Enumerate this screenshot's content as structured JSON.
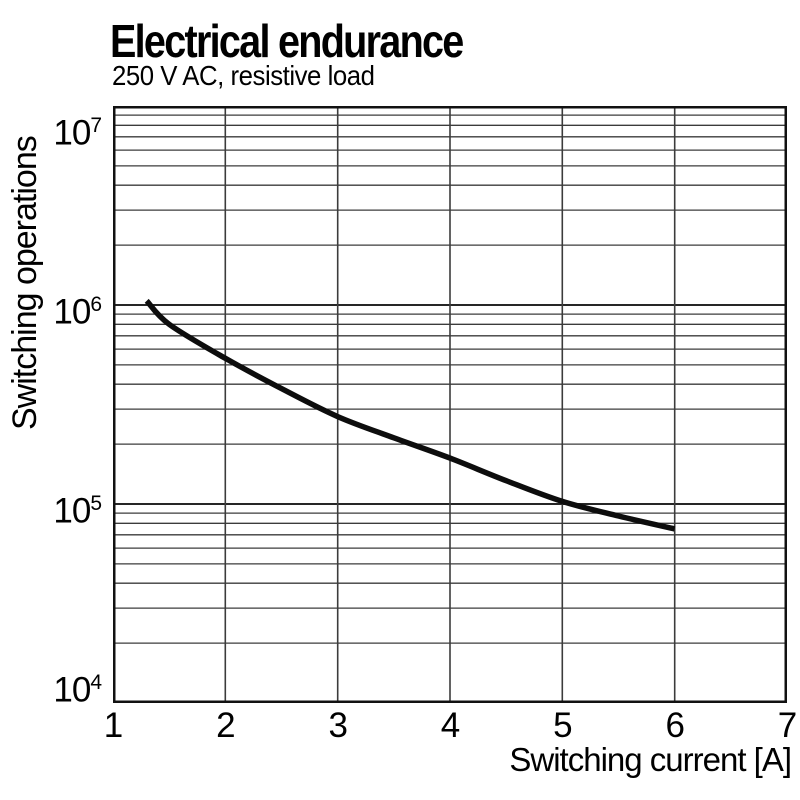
{
  "header": {
    "title": "Electrical endurance",
    "subtitle": "250 V AC, resistive load"
  },
  "chart_data": {
    "type": "line",
    "title": "Electrical endurance",
    "subtitle": "250 V AC, resistive load",
    "xlabel": "Switching current [A]",
    "ylabel": "Switching operations",
    "x_range": [
      1,
      7
    ],
    "x_ticks": [
      1,
      2,
      3,
      4,
      5,
      6,
      7
    ],
    "y_scale": "log",
    "y_range": [
      10000,
      10000000
    ],
    "y_ticks": [
      {
        "value": 10000000,
        "base": "10",
        "exp": "7"
      },
      {
        "value": 1000000,
        "base": "10",
        "exp": "6"
      },
      {
        "value": 100000,
        "base": "10",
        "exp": "5"
      },
      {
        "value": 10000,
        "base": "10",
        "exp": "4"
      }
    ],
    "grid": {
      "y_minor": true,
      "y_major": true,
      "x_major": true,
      "x_minor": false
    },
    "legend": "none",
    "series": [
      {
        "name": "electrical-endurance-curve",
        "color": "#0d0d0d",
        "points": [
          [
            1.3,
            1050000
          ],
          [
            1.5,
            800000
          ],
          [
            2.0,
            540000
          ],
          [
            2.5,
            380000
          ],
          [
            3.0,
            275000
          ],
          [
            3.5,
            215000
          ],
          [
            4.0,
            170000
          ],
          [
            4.5,
            131000
          ],
          [
            5.0,
            103000
          ],
          [
            5.5,
            87000
          ],
          [
            6.0,
            75000
          ]
        ]
      }
    ],
    "colors": {
      "background": "#ffffff",
      "grid_minor": "#3c3c3c",
      "grid_major": "#262626",
      "axis_border": "#111111",
      "text": "#000000"
    }
  }
}
